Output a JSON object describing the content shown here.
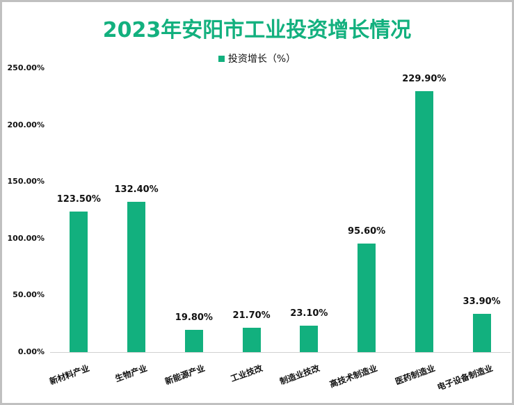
{
  "chart_data": {
    "type": "bar",
    "title": "2023年安阳市工业投资增长情况",
    "legend": [
      "投资增长（%）"
    ],
    "legend_position": "top",
    "categories": [
      "新材料产业",
      "生物产业",
      "新能源产业",
      "工业技改",
      "制造业技改",
      "高技术制造业",
      "医药制造业",
      "电子设备制造业"
    ],
    "series": [
      {
        "name": "投资增长（%）",
        "values": [
          123.5,
          132.4,
          19.8,
          21.7,
          23.1,
          95.6,
          229.9,
          33.9
        ]
      }
    ],
    "value_labels": [
      "123.50%",
      "132.40%",
      "19.80%",
      "21.70%",
      "23.10%",
      "95.60%",
      "229.90%",
      "33.90%"
    ],
    "yticks": [
      "0.00%",
      "50.00%",
      "100.00%",
      "150.00%",
      "200.00%",
      "250.00%"
    ],
    "ylim": [
      0,
      250
    ],
    "xlabel": "",
    "ylabel": "",
    "grid": false,
    "color": "#12b07e"
  },
  "title": "2023年安阳市工业投资增长情况",
  "legend_label": "投资增长（%）"
}
